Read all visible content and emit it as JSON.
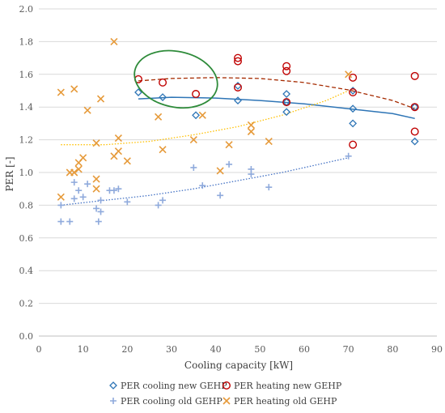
{
  "chart_data": {
    "type": "scatter",
    "title": "",
    "xlabel": "Cooling capacity [kW]",
    "ylabel": "PER [-]",
    "xlim": [
      0,
      90
    ],
    "ylim": [
      0,
      2.0
    ],
    "x_ticks": [
      "0",
      "10",
      "20",
      "30",
      "40",
      "50",
      "60",
      "70",
      "80",
      "90"
    ],
    "y_ticks": [
      "0.0",
      "0.2",
      "0.4",
      "0.6",
      "0.8",
      "1.0",
      "1.2",
      "1.4",
      "1.6",
      "1.8",
      "2.0"
    ],
    "grid": "horizontal",
    "legend_position": "bottom",
    "series": [
      {
        "name": "PER cooling new GEHP",
        "marker": "diamond",
        "color": "#2e75b6",
        "points": [
          [
            22.5,
            1.49
          ],
          [
            28,
            1.46
          ],
          [
            35.5,
            1.35
          ],
          [
            45,
            1.53
          ],
          [
            45,
            1.44
          ],
          [
            56,
            1.48
          ],
          [
            56,
            1.43
          ],
          [
            56,
            1.37
          ],
          [
            71,
            1.5
          ],
          [
            71,
            1.39
          ],
          [
            71,
            1.3
          ],
          [
            85,
            1.4
          ],
          [
            85,
            1.19
          ]
        ],
        "trend": {
          "style": "solid",
          "color": "#2e75b6",
          "points": [
            [
              22.5,
              1.45
            ],
            [
              30,
              1.46
            ],
            [
              40,
              1.455
            ],
            [
              50,
              1.44
            ],
            [
              60,
              1.42
            ],
            [
              70,
              1.39
            ],
            [
              80,
              1.36
            ],
            [
              85,
              1.33
            ]
          ]
        }
      },
      {
        "name": "PER heating new GEHP",
        "marker": "circle",
        "color": "#c00000",
        "points": [
          [
            22.5,
            1.57
          ],
          [
            28,
            1.55
          ],
          [
            35.5,
            1.48
          ],
          [
            45,
            1.7
          ],
          [
            45,
            1.68
          ],
          [
            45,
            1.52
          ],
          [
            56,
            1.65
          ],
          [
            56,
            1.62
          ],
          [
            56,
            1.43
          ],
          [
            71,
            1.58
          ],
          [
            71,
            1.49
          ],
          [
            71,
            1.17
          ],
          [
            85,
            1.59
          ],
          [
            85,
            1.4
          ],
          [
            85,
            1.25
          ]
        ],
        "trend": {
          "style": "dashed",
          "color": "#a52a00",
          "points": [
            [
              22.5,
              1.56
            ],
            [
              30,
              1.575
            ],
            [
              40,
              1.58
            ],
            [
              50,
              1.575
            ],
            [
              60,
              1.55
            ],
            [
              70,
              1.505
            ],
            [
              80,
              1.44
            ],
            [
              85,
              1.39
            ]
          ]
        }
      },
      {
        "name": "PER cooling old GEHP",
        "marker": "plus",
        "color": "#8faadc",
        "points": [
          [
            5,
            0.7
          ],
          [
            7,
            0.7
          ],
          [
            5,
            0.8
          ],
          [
            8,
            0.84
          ],
          [
            8,
            0.94
          ],
          [
            9,
            0.89
          ],
          [
            10,
            0.85
          ],
          [
            11,
            0.93
          ],
          [
            13,
            0.78
          ],
          [
            13.5,
            0.7
          ],
          [
            14,
            0.76
          ],
          [
            14,
            0.83
          ],
          [
            16,
            0.89
          ],
          [
            17,
            0.89
          ],
          [
            18,
            0.9
          ],
          [
            20,
            0.82
          ],
          [
            27,
            0.8
          ],
          [
            28,
            0.83
          ],
          [
            35,
            1.03
          ],
          [
            37,
            0.92
          ],
          [
            41,
            0.86
          ],
          [
            43,
            1.05
          ],
          [
            48,
            1.02
          ],
          [
            48,
            0.99
          ],
          [
            52,
            0.91
          ],
          [
            70,
            1.1
          ]
        ],
        "trend": {
          "style": "dotted",
          "color": "#4472c4",
          "points": [
            [
              5,
              0.8
            ],
            [
              15,
              0.83
            ],
            [
              25,
              0.86
            ],
            [
              35,
              0.9
            ],
            [
              45,
              0.95
            ],
            [
              55,
              1.0
            ],
            [
              65,
              1.06
            ],
            [
              70,
              1.09
            ]
          ]
        }
      },
      {
        "name": "PER heating old GEHP",
        "marker": "cross",
        "color": "#e69a3a",
        "points": [
          [
            5,
            1.49
          ],
          [
            8,
            1.51
          ],
          [
            14,
            1.45
          ],
          [
            17,
            1.8
          ],
          [
            11,
            1.38
          ],
          [
            27,
            1.34
          ],
          [
            37,
            1.35
          ],
          [
            8,
            1.0
          ],
          [
            7,
            1.0
          ],
          [
            9,
            1.02
          ],
          [
            9,
            1.06
          ],
          [
            10,
            1.09
          ],
          [
            13,
            1.18
          ],
          [
            18,
            1.21
          ],
          [
            17,
            1.1
          ],
          [
            18,
            1.13
          ],
          [
            20,
            1.07
          ],
          [
            28,
            1.14
          ],
          [
            35,
            1.2
          ],
          [
            41,
            1.01
          ],
          [
            43,
            1.17
          ],
          [
            48,
            1.29
          ],
          [
            48,
            1.25
          ],
          [
            52,
            1.19
          ],
          [
            70,
            1.6
          ],
          [
            13,
            0.96
          ],
          [
            13,
            0.9
          ],
          [
            5,
            0.85
          ]
        ],
        "trend": {
          "style": "dotted",
          "color": "#ffc000",
          "points": [
            [
              5,
              1.17
            ],
            [
              15,
              1.17
            ],
            [
              25,
              1.19
            ],
            [
              35,
              1.23
            ],
            [
              45,
              1.28
            ],
            [
              55,
              1.35
            ],
            [
              65,
              1.44
            ],
            [
              70,
              1.5
            ]
          ]
        }
      }
    ],
    "annotation": {
      "type": "ellipse",
      "color": "#2e8b3a",
      "center": [
        31,
        1.57
      ],
      "rx_data": 9.5,
      "ry_data": 0.17
    }
  }
}
